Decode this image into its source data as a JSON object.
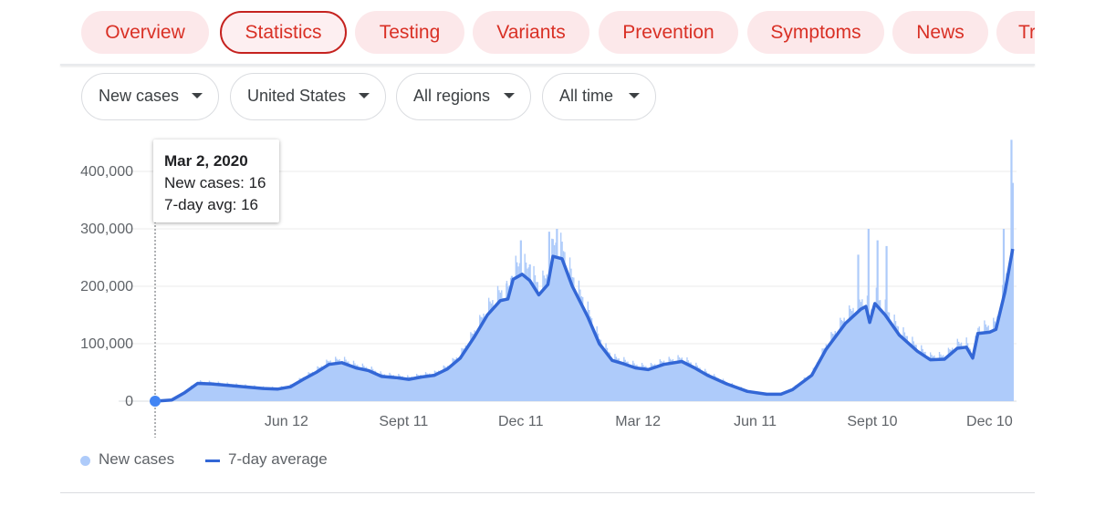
{
  "tabs": [
    {
      "label": "Overview",
      "active": false
    },
    {
      "label": "Statistics",
      "active": true
    },
    {
      "label": "Testing",
      "active": false
    },
    {
      "label": "Variants",
      "active": false
    },
    {
      "label": "Prevention",
      "active": false
    },
    {
      "label": "Symptoms",
      "active": false
    },
    {
      "label": "News",
      "active": false
    },
    {
      "label": "Tr",
      "active": false
    }
  ],
  "filters": {
    "metric": "New cases",
    "country": "United States",
    "region": "All regions",
    "range": "All time"
  },
  "tooltip": {
    "date": "Mar 2, 2020",
    "new_cases": "New cases: 16",
    "avg": "7-day avg: 16"
  },
  "legend": {
    "bars_label": "New cases",
    "line_label": "7-day average"
  },
  "colors": {
    "accent_red": "#d93025",
    "bar": "#aecbfa",
    "line": "#3367d6"
  },
  "chart_data": {
    "type": "bar",
    "x_unit": "day",
    "x_start": "2020-03-02",
    "x_end": "2021-12-31",
    "ylim": [
      0,
      400000
    ],
    "yticks": [
      "0",
      "100,000",
      "200,000",
      "300,000",
      "400,000"
    ],
    "xticks": [
      {
        "label": "Jun 12",
        "date": "2020-06-12"
      },
      {
        "label": "Sept 11",
        "date": "2020-09-11"
      },
      {
        "label": "Dec 11",
        "date": "2020-12-11"
      },
      {
        "label": "Mar 12",
        "date": "2021-03-12"
      },
      {
        "label": "Jun 11",
        "date": "2021-06-11"
      },
      {
        "label": "Sept 10",
        "date": "2021-09-10"
      },
      {
        "label": "Dec 10",
        "date": "2021-12-10"
      }
    ],
    "highlight": {
      "date": "2020-03-02",
      "value": 16
    },
    "series": [
      {
        "name": "7-day average",
        "points": [
          [
            "2020-03-02",
            16
          ],
          [
            "2020-03-15",
            2000
          ],
          [
            "2020-03-25",
            15000
          ],
          [
            "2020-04-04",
            31000
          ],
          [
            "2020-04-15",
            30000
          ],
          [
            "2020-04-25",
            28000
          ],
          [
            "2020-05-05",
            26000
          ],
          [
            "2020-05-15",
            24000
          ],
          [
            "2020-05-25",
            22000
          ],
          [
            "2020-06-05",
            21000
          ],
          [
            "2020-06-15",
            25000
          ],
          [
            "2020-06-25",
            38000
          ],
          [
            "2020-07-05",
            50000
          ],
          [
            "2020-07-15",
            64000
          ],
          [
            "2020-07-25",
            67000
          ],
          [
            "2020-08-05",
            58000
          ],
          [
            "2020-08-15",
            53000
          ],
          [
            "2020-08-25",
            43000
          ],
          [
            "2020-09-05",
            41000
          ],
          [
            "2020-09-15",
            38000
          ],
          [
            "2020-09-25",
            42000
          ],
          [
            "2020-10-05",
            45000
          ],
          [
            "2020-10-15",
            56000
          ],
          [
            "2020-10-25",
            75000
          ],
          [
            "2020-11-05",
            112000
          ],
          [
            "2020-11-15",
            150000
          ],
          [
            "2020-11-25",
            175000
          ],
          [
            "2020-12-01",
            178000
          ],
          [
            "2020-12-05",
            212000
          ],
          [
            "2020-12-12",
            221000
          ],
          [
            "2020-12-18",
            210000
          ],
          [
            "2020-12-25",
            185000
          ],
          [
            "2021-01-01",
            203000
          ],
          [
            "2021-01-05",
            252000
          ],
          [
            "2021-01-12",
            248000
          ],
          [
            "2021-01-20",
            200000
          ],
          [
            "2021-02-01",
            147000
          ],
          [
            "2021-02-10",
            100000
          ],
          [
            "2021-02-20",
            71000
          ],
          [
            "2021-03-01",
            65000
          ],
          [
            "2021-03-10",
            58000
          ],
          [
            "2021-03-20",
            55000
          ],
          [
            "2021-04-01",
            64000
          ],
          [
            "2021-04-15",
            69000
          ],
          [
            "2021-04-25",
            58000
          ],
          [
            "2021-05-05",
            45000
          ],
          [
            "2021-05-20",
            30000
          ],
          [
            "2021-06-05",
            17000
          ],
          [
            "2021-06-20",
            12000
          ],
          [
            "2021-07-01",
            12000
          ],
          [
            "2021-07-10",
            20000
          ],
          [
            "2021-07-25",
            45000
          ],
          [
            "2021-08-05",
            90000
          ],
          [
            "2021-08-20",
            135000
          ],
          [
            "2021-09-01",
            160000
          ],
          [
            "2021-09-05",
            165000
          ],
          [
            "2021-09-08",
            137000
          ],
          [
            "2021-09-12",
            170000
          ],
          [
            "2021-09-20",
            150000
          ],
          [
            "2021-10-01",
            115000
          ],
          [
            "2021-10-15",
            87000
          ],
          [
            "2021-10-25",
            72000
          ],
          [
            "2021-11-05",
            73000
          ],
          [
            "2021-11-15",
            92000
          ],
          [
            "2021-11-22",
            94000
          ],
          [
            "2021-11-27",
            75000
          ],
          [
            "2021-12-01",
            118000
          ],
          [
            "2021-12-10",
            120000
          ],
          [
            "2021-12-15",
            125000
          ],
          [
            "2021-12-22",
            190000
          ],
          [
            "2021-12-28",
            265000
          ]
        ]
      },
      {
        "name": "New cases",
        "points": [
          [
            "2020-03-02",
            16
          ],
          [
            "2020-03-15",
            2000
          ],
          [
            "2020-03-25",
            15000
          ],
          [
            "2020-04-04",
            31000
          ],
          [
            "2020-04-15",
            30000
          ],
          [
            "2020-04-25",
            28000
          ],
          [
            "2020-05-05",
            26000
          ],
          [
            "2020-05-15",
            24000
          ],
          [
            "2020-05-25",
            22000
          ],
          [
            "2020-06-05",
            21000
          ],
          [
            "2020-06-15",
            25000
          ],
          [
            "2020-06-25",
            38000
          ],
          [
            "2020-07-05",
            50000
          ],
          [
            "2020-07-15",
            64000
          ],
          [
            "2020-07-25",
            67000
          ],
          [
            "2020-08-05",
            58000
          ],
          [
            "2020-08-15",
            53000
          ],
          [
            "2020-08-25",
            43000
          ],
          [
            "2020-09-05",
            41000
          ],
          [
            "2020-09-15",
            38000
          ],
          [
            "2020-09-25",
            42000
          ],
          [
            "2020-10-05",
            45000
          ],
          [
            "2020-10-15",
            56000
          ],
          [
            "2020-10-25",
            75000
          ],
          [
            "2020-11-05",
            112000
          ],
          [
            "2020-11-15",
            150000
          ],
          [
            "2020-11-25",
            175000
          ],
          [
            "2020-12-01",
            178000
          ],
          [
            "2020-12-05",
            212000
          ],
          [
            "2020-12-12",
            221000
          ],
          [
            "2020-12-18",
            210000
          ],
          [
            "2020-12-25",
            185000
          ],
          [
            "2021-01-01",
            203000
          ],
          [
            "2021-01-05",
            252000
          ],
          [
            "2021-01-12",
            248000
          ],
          [
            "2021-01-20",
            200000
          ],
          [
            "2021-02-01",
            147000
          ],
          [
            "2021-02-10",
            100000
          ],
          [
            "2021-02-20",
            71000
          ],
          [
            "2021-03-01",
            65000
          ],
          [
            "2021-03-10",
            58000
          ],
          [
            "2021-03-20",
            55000
          ],
          [
            "2021-04-01",
            64000
          ],
          [
            "2021-04-15",
            69000
          ],
          [
            "2021-04-25",
            58000
          ],
          [
            "2021-05-05",
            45000
          ],
          [
            "2021-05-20",
            30000
          ],
          [
            "2021-06-05",
            17000
          ],
          [
            "2021-06-20",
            12000
          ],
          [
            "2021-07-01",
            12000
          ],
          [
            "2021-07-10",
            20000
          ],
          [
            "2021-07-25",
            45000
          ],
          [
            "2021-08-05",
            90000
          ],
          [
            "2021-08-20",
            135000
          ],
          [
            "2021-09-01",
            160000
          ],
          [
            "2021-09-05",
            165000
          ],
          [
            "2021-09-08",
            137000
          ],
          [
            "2021-09-12",
            170000
          ],
          [
            "2021-09-20",
            150000
          ],
          [
            "2021-10-01",
            115000
          ],
          [
            "2021-10-15",
            87000
          ],
          [
            "2021-10-25",
            72000
          ],
          [
            "2021-11-05",
            73000
          ],
          [
            "2021-11-15",
            92000
          ],
          [
            "2021-11-22",
            94000
          ],
          [
            "2021-11-27",
            75000
          ],
          [
            "2021-12-01",
            118000
          ],
          [
            "2021-12-10",
            120000
          ],
          [
            "2021-12-15",
            125000
          ],
          [
            "2021-12-22",
            190000
          ],
          [
            "2021-12-28",
            265000
          ]
        ],
        "spikes": [
          [
            "2020-11-30",
            205000
          ],
          [
            "2020-12-04",
            218000
          ],
          [
            "2020-12-11",
            280000
          ],
          [
            "2020-12-18",
            238000
          ],
          [
            "2021-01-02",
            295000
          ],
          [
            "2021-01-08",
            300000
          ],
          [
            "2021-08-30",
            255000
          ],
          [
            "2021-09-07",
            300000
          ],
          [
            "2021-09-14",
            280000
          ],
          [
            "2021-09-21",
            270000
          ],
          [
            "2021-12-21",
            300000
          ],
          [
            "2021-12-27",
            455000
          ],
          [
            "2021-12-28",
            380000
          ]
        ]
      }
    ]
  }
}
